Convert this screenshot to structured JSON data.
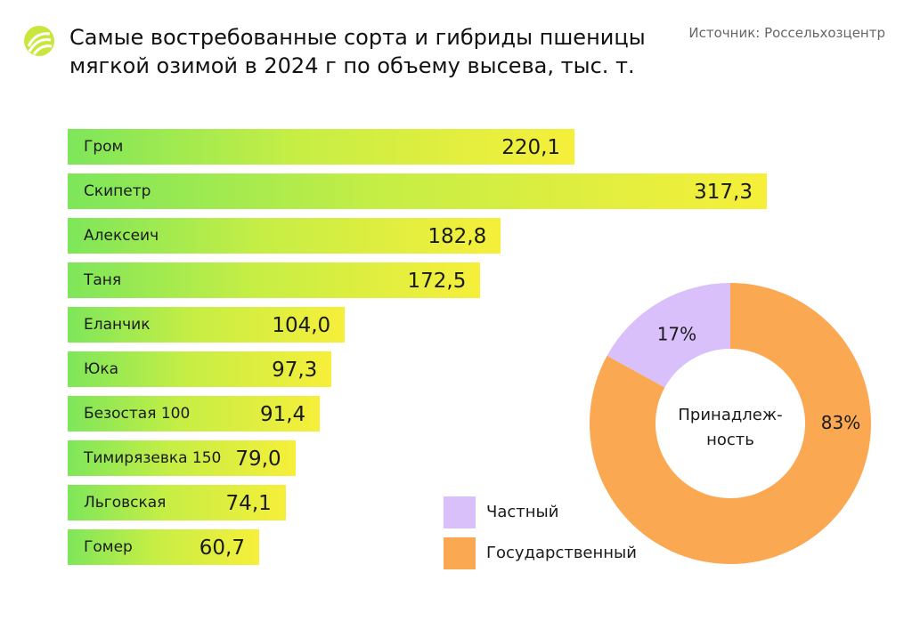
{
  "header": {
    "title_line1": "Самые востребованные сорта и гибриды пшеницы",
    "title_line2": "мягкой озимой в 2024 г по объему высева, тыс. т.",
    "source": "Источник: Россельхозцентр"
  },
  "chart_data": [
    {
      "type": "bar",
      "orientation": "horizontal",
      "title": "Самые востребованные сорта и гибриды пшеницы мягкой озимой в 2024 г по объему высева, тыс. т.",
      "categories": [
        "Гром",
        "Скипетр",
        "Алексеич",
        "Таня",
        "Еланчик",
        "Юка",
        "Безостая 100",
        "Тимирязевка 150",
        "Льговская",
        "Гомер"
      ],
      "values": [
        220.1,
        317.3,
        182.8,
        172.5,
        104.0,
        97.3,
        91.4,
        79.0,
        74.1,
        60.7
      ],
      "value_labels": [
        "220,1",
        "317,3",
        "182,8",
        "172,5",
        "104,0",
        "97,3",
        "91,4",
        "79,0",
        "74,1",
        "60,7"
      ],
      "colors": {
        "gradient_start": "#7ee65a",
        "gradient_end": "#f6ef3a"
      }
    },
    {
      "type": "pie",
      "variant": "donut",
      "center_label_line1": "Принадлеж-",
      "center_label_line2": "ность",
      "slices": [
        {
          "name": "Частный",
          "value": 17,
          "label": "17%",
          "color": "#d9c0fb"
        },
        {
          "name": "Государственный",
          "value": 83,
          "label": "83%",
          "color": "#fba852"
        }
      ],
      "legend_position": "left"
    }
  ]
}
